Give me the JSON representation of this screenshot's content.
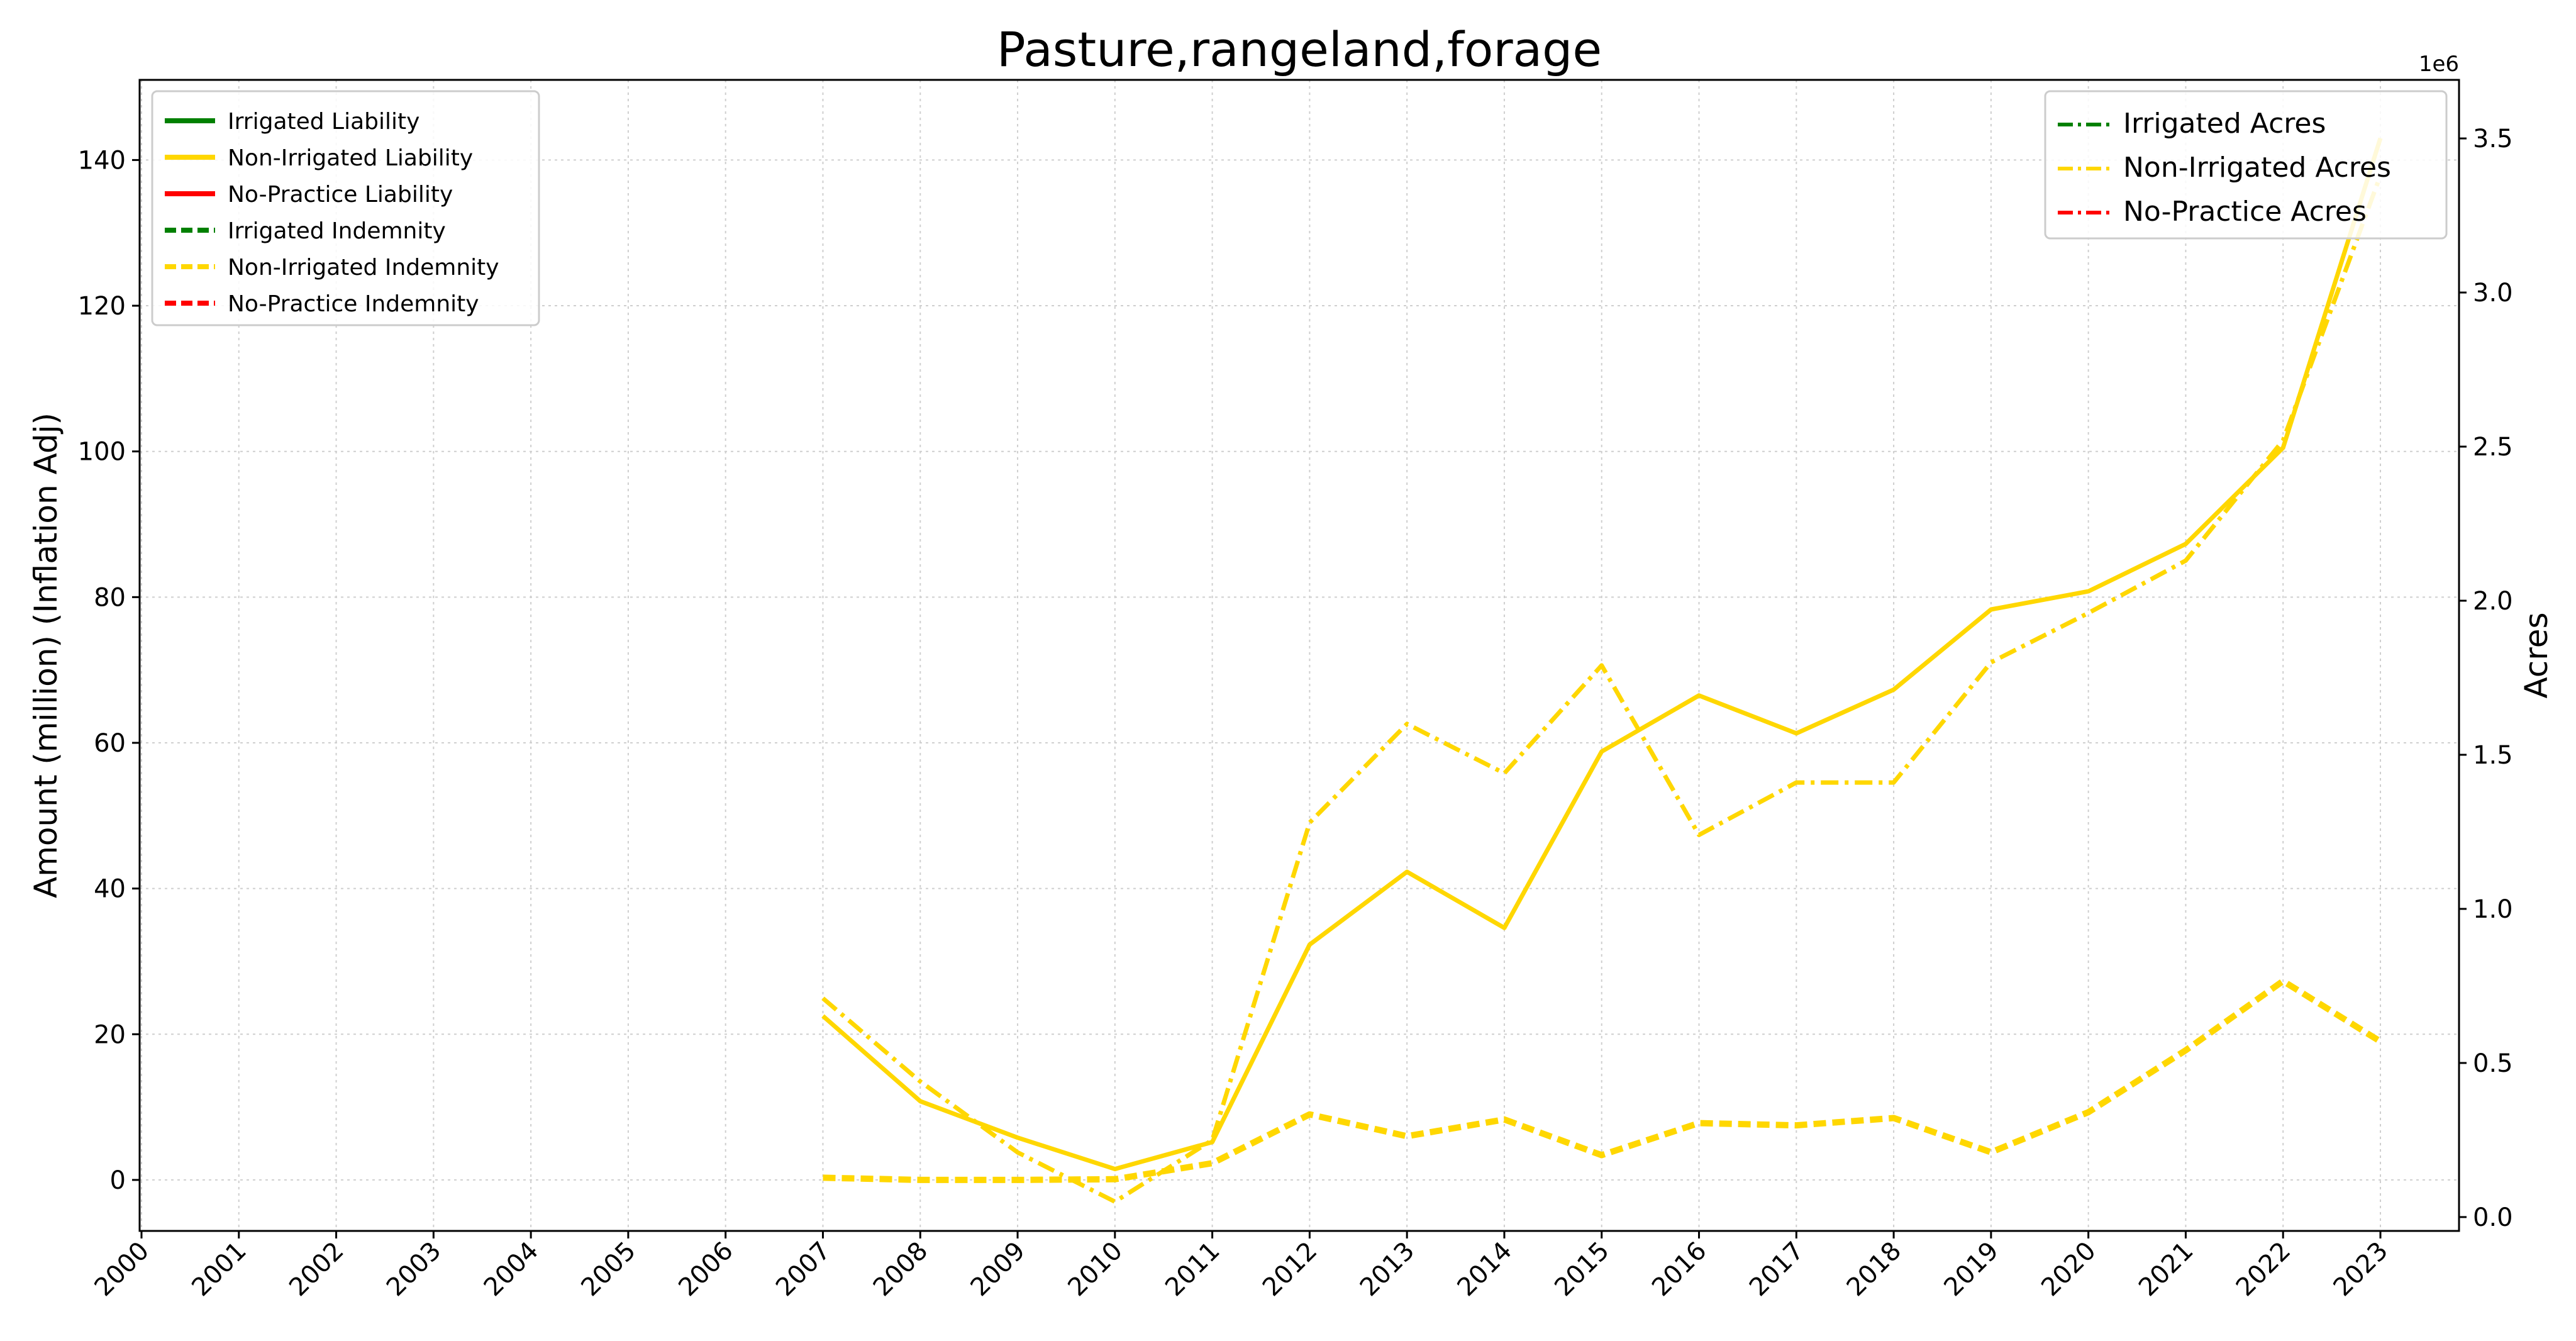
{
  "chart_data": {
    "type": "line",
    "title": "Pasture,rangeland,forage",
    "ylabel": "Amount (million) (Inflation Adj)",
    "y2label": "Acres",
    "y2_offset_label": "1e6",
    "x": [
      "2000",
      "2001",
      "2002",
      "2003",
      "2004",
      "2005",
      "2006",
      "2007",
      "2008",
      "2009",
      "2010",
      "2011",
      "2012",
      "2013",
      "2014",
      "2015",
      "2016",
      "2017",
      "2018",
      "2019",
      "2020",
      "2021",
      "2022",
      "2023"
    ],
    "ylim": [
      -7,
      151
    ],
    "y2lim": [
      -0.045,
      3.69
    ],
    "yticks": [
      "0",
      "20",
      "40",
      "60",
      "80",
      "100",
      "120",
      "140"
    ],
    "y2ticks": [
      "0.0",
      "0.5",
      "1.0",
      "1.5",
      "2.0",
      "2.5",
      "3.0",
      "3.5"
    ],
    "grid": true,
    "colors": {
      "irrigated": "#008000",
      "non_irrigated": "#FFD700",
      "no_practice": "#FF0000"
    },
    "legend_left": {
      "placement": "upper-left",
      "entries": [
        {
          "label": "Irrigated Liability",
          "color": "#008000",
          "style": "solid"
        },
        {
          "label": "Non-Irrigated Liability",
          "color": "#FFD700",
          "style": "solid"
        },
        {
          "label": "No-Practice Liability",
          "color": "#FF0000",
          "style": "solid"
        },
        {
          "label": "Irrigated Indemnity",
          "color": "#008000",
          "style": "dashed"
        },
        {
          "label": "Non-Irrigated Indemnity",
          "color": "#FFD700",
          "style": "dashed"
        },
        {
          "label": "No-Practice Indemnity",
          "color": "#FF0000",
          "style": "dashed"
        }
      ]
    },
    "legend_right": {
      "placement": "upper-right",
      "entries": [
        {
          "label": "Irrigated Acres",
          "color": "#008000",
          "style": "dashdot"
        },
        {
          "label": "Non-Irrigated Acres",
          "color": "#FFD700",
          "style": "dashdot"
        },
        {
          "label": "No-Practice Acres",
          "color": "#FF0000",
          "style": "dashdot"
        }
      ]
    },
    "series": [
      {
        "name": "Non-Irrigated Liability",
        "axis": "left",
        "style": "solid",
        "color": "#FFD700",
        "values": [
          null,
          null,
          null,
          null,
          null,
          null,
          null,
          22.5,
          10.8,
          5.8,
          1.5,
          5.2,
          32.3,
          42.3,
          34.6,
          58.8,
          66.5,
          61.3,
          67.3,
          78.3,
          80.8,
          87.3,
          100.5,
          143.0
        ]
      },
      {
        "name": "Non-Irrigated Indemnity",
        "axis": "left",
        "style": "dashed",
        "color": "#FFD700",
        "values": [
          null,
          null,
          null,
          null,
          null,
          null,
          null,
          0.3,
          0.0,
          0.0,
          0.1,
          2.3,
          9.0,
          6.0,
          8.3,
          3.4,
          7.8,
          7.5,
          8.5,
          3.8,
          9.3,
          17.8,
          27.3,
          19.0
        ]
      },
      {
        "name": "Non-Irrigated Acres",
        "axis": "right",
        "style": "dashdot",
        "color": "#FFD700",
        "values": [
          null,
          null,
          null,
          null,
          null,
          null,
          null,
          0.71,
          0.44,
          0.21,
          0.05,
          0.25,
          1.28,
          1.6,
          1.44,
          1.79,
          1.24,
          1.41,
          1.41,
          1.8,
          1.96,
          2.13,
          2.52,
          3.38
        ]
      }
    ]
  }
}
